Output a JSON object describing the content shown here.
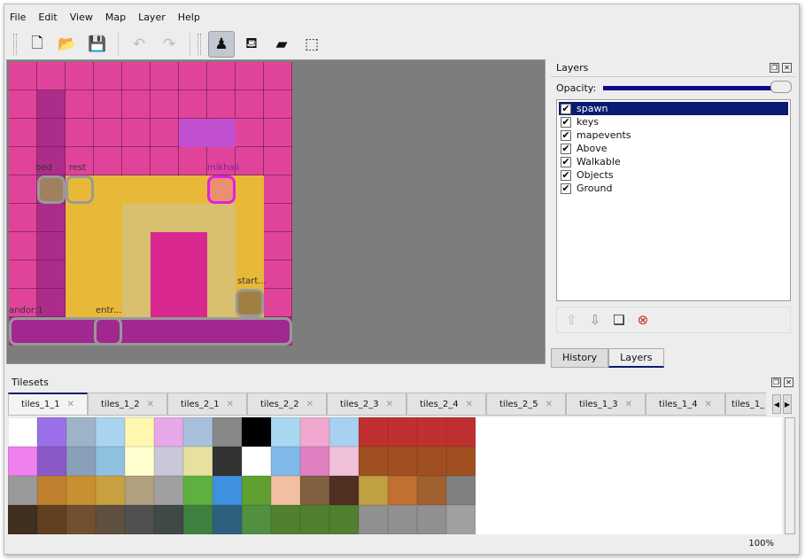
{
  "menu": [
    "File",
    "Edit",
    "View",
    "Map",
    "Layer",
    "Help"
  ],
  "toolbar": [
    {
      "name": "new-icon",
      "glyph": "🗋"
    },
    {
      "name": "open-icon",
      "glyph": "📂"
    },
    {
      "name": "save-icon",
      "glyph": "💾"
    },
    {
      "name": "undo-icon",
      "glyph": "↶",
      "disabled": true
    },
    {
      "name": "redo-icon",
      "glyph": "↷",
      "disabled": true
    },
    {
      "name": "stamp-brush-icon",
      "glyph": "♟",
      "active": true
    },
    {
      "name": "bucket-fill-icon",
      "glyph": "⛾"
    },
    {
      "name": "eraser-icon",
      "glyph": "▰"
    },
    {
      "name": "rect-select-icon",
      "glyph": "⬚"
    }
  ],
  "map": {
    "labels": [
      "bed",
      "rest",
      "mikhail",
      "start...",
      "andor:1",
      "entr..."
    ]
  },
  "layers_panel": {
    "title": "Layers",
    "opacity_label": "Opacity:",
    "opacity": 1.0,
    "layers": [
      {
        "name": "spawn",
        "visible": true,
        "selected": true
      },
      {
        "name": "keys",
        "visible": true
      },
      {
        "name": "mapevents",
        "visible": true
      },
      {
        "name": "Above",
        "visible": true
      },
      {
        "name": "Walkable",
        "visible": true
      },
      {
        "name": "Objects",
        "visible": true
      },
      {
        "name": "Ground",
        "visible": true
      }
    ],
    "tabs": [
      "History",
      "Layers"
    ],
    "active_tab": "Layers"
  },
  "tilesets": {
    "title": "Tilesets",
    "tabs": [
      "tiles_1_1",
      "tiles_1_2",
      "tiles_2_1",
      "tiles_2_2",
      "tiles_2_3",
      "tiles_2_4",
      "tiles_2_5",
      "tiles_1_3",
      "tiles_1_4",
      "tiles_1_"
    ],
    "active": "tiles_1_1",
    "tile_colors": [
      "#fff",
      "#9b6fe8",
      "#9fb3c8",
      "#a9d4f0",
      "#fff7b0",
      "#e6a8e8",
      "#a9c0dc",
      "#888",
      "#000",
      "#a8d8f0",
      "#f0a8d0",
      "#a8d0f0",
      "#c03030",
      "#c03030",
      "#c03030",
      "#c03030",
      "#f07ff0",
      "#8a5ac8",
      "#8aa0b8",
      "#90c0e0",
      "#ffffd0",
      "#c8c8d8",
      "#e8e0a0",
      "#333",
      "#fff",
      "#80b8e8",
      "#e080c0",
      "#f0c0d8",
      "#a05020",
      "#a05020",
      "#a05020",
      "#a05020",
      "#999",
      "#c08030",
      "#c89030",
      "#c8a040",
      "#b0a080",
      "#a0a0a0",
      "#60b040",
      "#4090e0",
      "#60a030",
      "#f0c0a0",
      "#806040",
      "#503020",
      "#c0a040",
      "#c07030",
      "#a06030",
      "#808080",
      "#403020",
      "#604020",
      "#705030",
      "#605040",
      "#505050",
      "#404848",
      "#408040",
      "#306080",
      "#509040",
      "#508030",
      "#508030",
      "#508030",
      "#909090",
      "#909090",
      "#909090",
      "#a0a0a0"
    ]
  },
  "status": {
    "zoom": "100%"
  }
}
